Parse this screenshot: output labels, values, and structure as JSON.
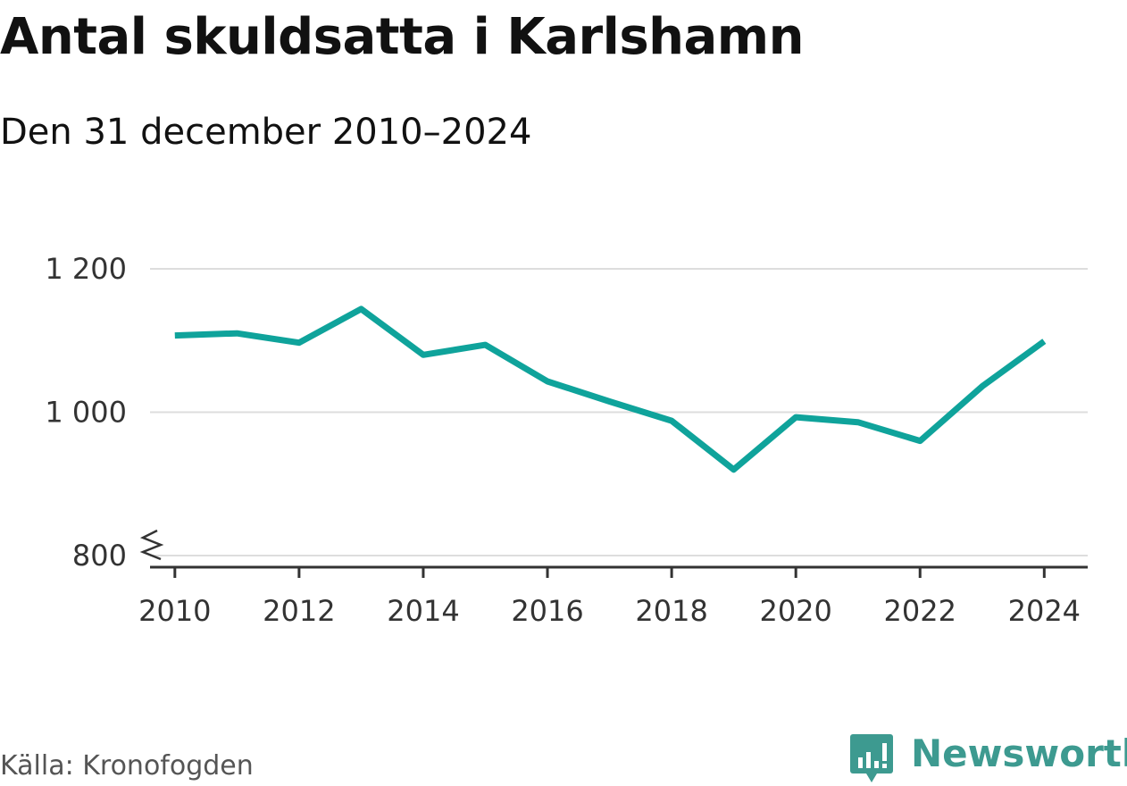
{
  "header": {
    "title": "Antal skuldsatta i Karlshamn",
    "subtitle": "Den 31 december 2010–2024"
  },
  "footer": {
    "source": "Källa: Kronofogden",
    "brand": "Newsworthy"
  },
  "colors": {
    "line": "#0fa39b",
    "grid": "#dddddd",
    "axis": "#333333",
    "brand": "#3d9a90"
  },
  "chart_data": {
    "type": "line",
    "title": "Antal skuldsatta i Karlshamn",
    "subtitle": "Den 31 december 2010–2024",
    "xlabel": "",
    "ylabel": "",
    "x": [
      2010,
      2011,
      2012,
      2013,
      2014,
      2015,
      2016,
      2017,
      2018,
      2019,
      2020,
      2021,
      2022,
      2023,
      2024
    ],
    "series": [
      {
        "name": "Antal skuldsatta",
        "values": [
          1107,
          1110,
          1097,
          1144,
          1080,
          1094,
          1043,
          1015,
          988,
          920,
          993,
          986,
          960,
          1036,
          1099
        ]
      }
    ],
    "xticks": [
      "2010",
      "2012",
      "2014",
      "2016",
      "2018",
      "2020",
      "2022",
      "2024"
    ],
    "yticks": [
      "800",
      "1 000",
      "1 200"
    ],
    "ylim": [
      800,
      1200
    ],
    "xlim": [
      2009.6,
      2024.7
    ],
    "grid": true,
    "axis_break": true,
    "legend": "none"
  }
}
